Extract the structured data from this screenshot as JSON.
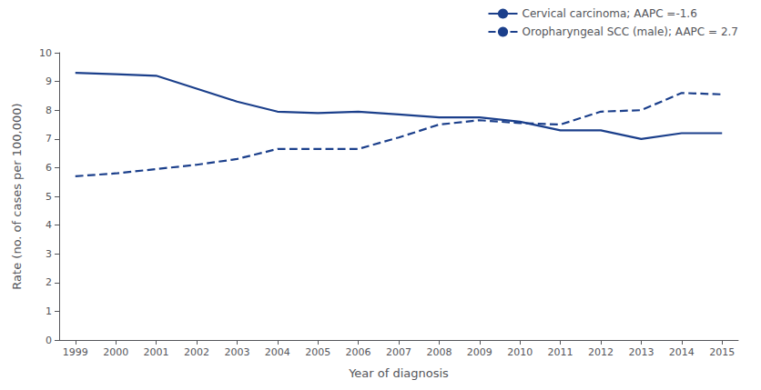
{
  "chart_data": {
    "type": "line",
    "x": [
      1999,
      2000,
      2001,
      2002,
      2003,
      2004,
      2005,
      2006,
      2007,
      2008,
      2009,
      2010,
      2011,
      2012,
      2013,
      2014,
      2015
    ],
    "series": [
      {
        "name": "Cervical carcinoma; AAPC =-1.6",
        "color": "#1B3F8B",
        "line_style": "solid",
        "values": [
          9.3,
          9.25,
          9.2,
          8.75,
          8.3,
          7.95,
          7.9,
          7.95,
          7.85,
          7.75,
          7.75,
          7.6,
          7.3,
          7.3,
          7.0,
          7.2,
          7.2
        ]
      },
      {
        "name": "Oropharyngeal SCC (male); AAPC = 2.7",
        "color": "#1B3F8B",
        "line_style": "dashed",
        "values": [
          5.7,
          5.8,
          5.95,
          6.1,
          6.3,
          6.65,
          6.65,
          6.65,
          7.05,
          7.5,
          7.65,
          7.55,
          7.5,
          7.95,
          8.0,
          8.6,
          8.55
        ]
      }
    ],
    "xlabel": "Year of diagnosis",
    "ylabel": "Rate (no. of cases per 100,000)",
    "xlim": [
      1998.6,
      2015.4
    ],
    "xticks": [
      1999,
      2000,
      2001,
      2002,
      2003,
      2004,
      2005,
      2006,
      2007,
      2008,
      2009,
      2010,
      2011,
      2012,
      2013,
      2014,
      2015
    ],
    "ylim": [
      0,
      10
    ],
    "yticks": [
      0,
      1,
      2,
      3,
      4,
      5,
      6,
      7,
      8,
      9,
      10
    ],
    "grid": false,
    "legend": "upper right"
  }
}
